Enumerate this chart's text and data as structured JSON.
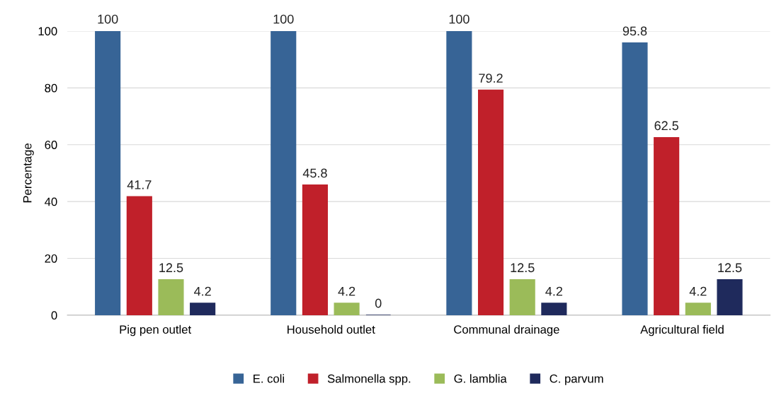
{
  "chart_data": {
    "type": "bar",
    "ylabel": "Percentage",
    "categories": [
      "Pig pen outlet",
      "Household outlet",
      "Communal drainage",
      "Agricultural field"
    ],
    "series": [
      {
        "name": "E. coli",
        "color": "#376496",
        "values": [
          100,
          100,
          100,
          95.8
        ]
      },
      {
        "name": "Salmonella spp.",
        "color": "#c0202a",
        "values": [
          41.7,
          45.8,
          79.2,
          62.5
        ]
      },
      {
        "name": "G. lamblia",
        "color": "#9bbb59",
        "values": [
          12.5,
          4.2,
          12.5,
          4.2
        ]
      },
      {
        "name": "C. parvum",
        "color": "#1f2a5c",
        "values": [
          4.2,
          0,
          4.2,
          12.5
        ]
      }
    ],
    "ylim": [
      0,
      100
    ],
    "yticks": [
      0,
      20,
      40,
      60,
      80,
      100
    ],
    "grid": "y",
    "legend": "bottom",
    "data_labels": true
  }
}
